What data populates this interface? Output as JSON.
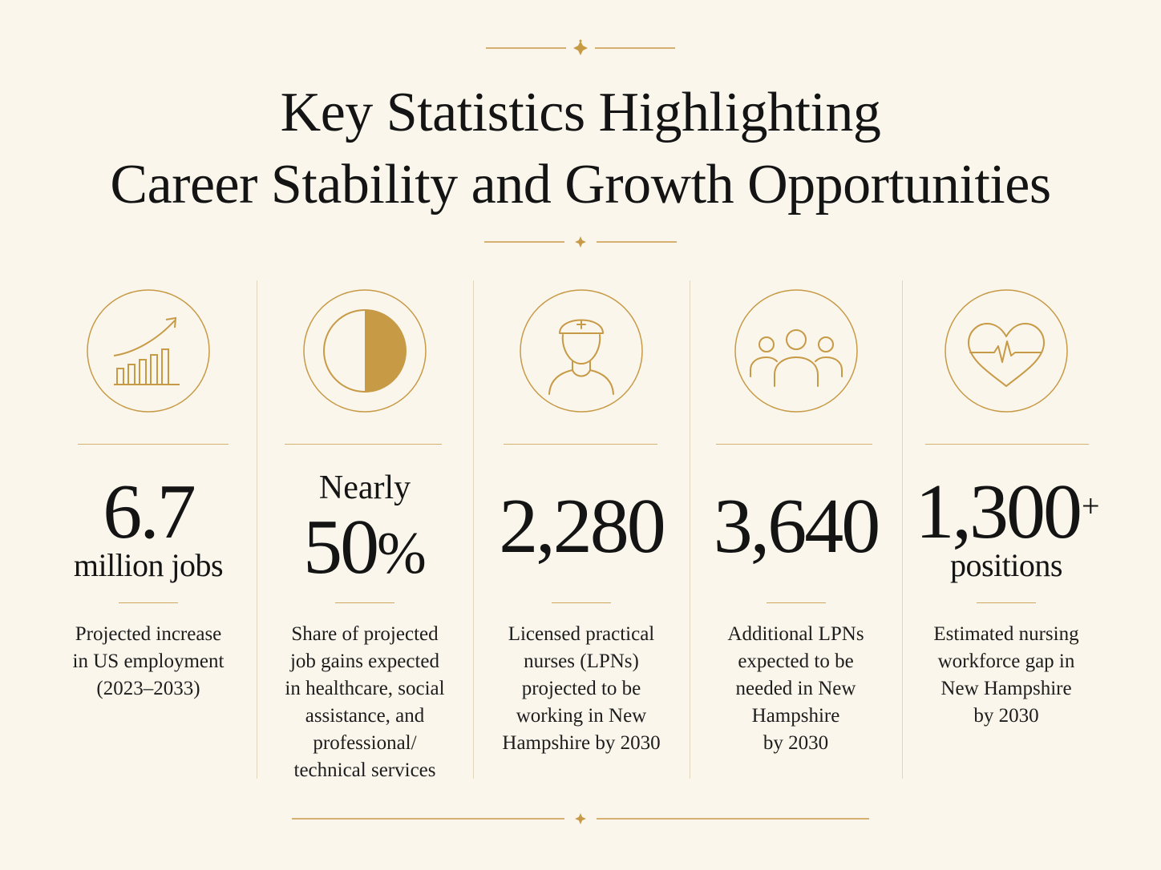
{
  "title": {
    "line1": "Key Statistics Highlighting",
    "line2": "Career Stability and Growth Opportunities"
  },
  "colors": {
    "background": "#faf6ec",
    "gold": "#c79a46",
    "text": "#141414"
  },
  "stats": [
    {
      "icon": "growth-chart-icon",
      "value": "6.7",
      "unit": "million jobs",
      "description": [
        "Projected increase",
        "in US employment",
        "(2023–2033)"
      ]
    },
    {
      "icon": "half-circle-icon",
      "prefix": "Nearly",
      "value": "50",
      "suffix": "%",
      "description": [
        "Share of projected",
        "job gains expected",
        "in healthcare, social",
        "assistance, and",
        "professional/",
        "technical services"
      ]
    },
    {
      "icon": "nurse-icon",
      "value": "2,280",
      "description": [
        "Licensed practical",
        "nurses (LPNs)",
        "projected to be",
        "working in New",
        "Hampshire by 2030"
      ]
    },
    {
      "icon": "people-group-icon",
      "value": "3,640",
      "description": [
        "Additional LPNs",
        "expected to be",
        "needed in New",
        "Hampshire",
        "by 2030"
      ]
    },
    {
      "icon": "heart-pulse-icon",
      "value": "1,300",
      "suffix": "+",
      "unit": "positions",
      "description": [
        "Estimated nursing",
        "workforce gap in",
        "New Hampshire",
        "by 2030"
      ]
    }
  ]
}
